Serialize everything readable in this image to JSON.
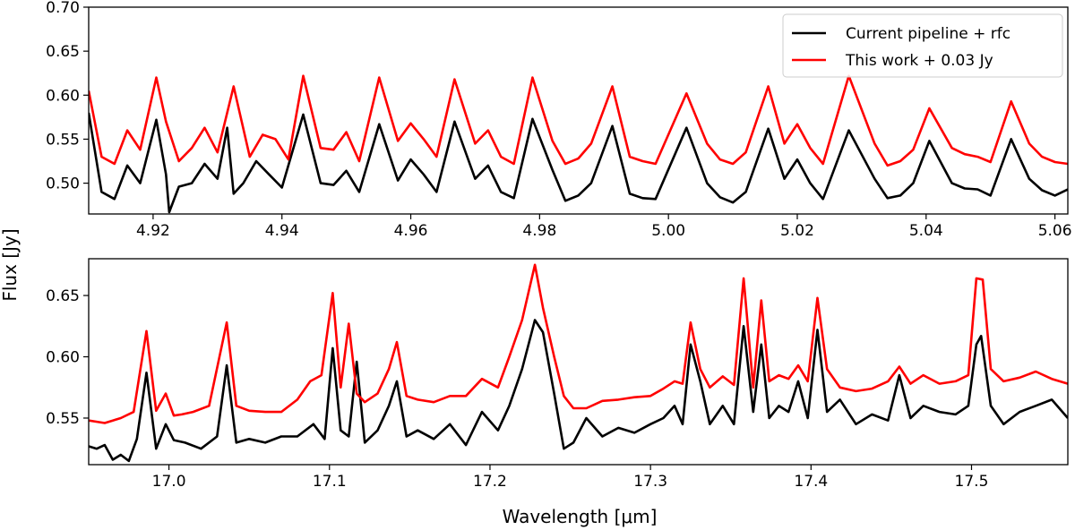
{
  "figure": {
    "ylabel": "Flux [Jy]",
    "xlabel": "Wavelength [μm]"
  },
  "legend": {
    "entries": [
      {
        "label": "Current pipeline + rfc",
        "color": "#000000"
      },
      {
        "label": "This work + 0.03 Jy",
        "color": "#ff0000"
      }
    ],
    "placement": "top-right"
  },
  "chart_data": [
    {
      "type": "line",
      "xlim": [
        4.91,
        5.062
      ],
      "ylim": [
        0.465,
        0.7
      ],
      "xticks": [
        "4.92",
        "4.94",
        "4.96",
        "4.98",
        "5.00",
        "5.02",
        "5.04",
        "5.06"
      ],
      "yticks": [
        "0.50",
        "0.55",
        "0.60",
        "0.65",
        "0.70"
      ],
      "series": [
        {
          "name": "Current pipeline + rfc",
          "color": "#000000",
          "x": [
            4.91,
            4.912,
            4.914,
            4.916,
            4.918,
            4.9205,
            4.922,
            4.9225,
            4.924,
            4.926,
            4.928,
            4.93,
            4.9315,
            4.9325,
            4.934,
            4.936,
            4.938,
            4.94,
            4.9433,
            4.946,
            4.948,
            4.95,
            4.952,
            4.9551,
            4.958,
            4.96,
            4.962,
            4.964,
            4.9668,
            4.97,
            4.972,
            4.974,
            4.976,
            4.9789,
            4.982,
            4.984,
            4.986,
            4.988,
            4.9913,
            4.994,
            4.996,
            4.998,
            5.0028,
            5.006,
            5.008,
            5.01,
            5.012,
            5.0155,
            5.018,
            5.02,
            5.022,
            5.024,
            5.028,
            5.032,
            5.034,
            5.036,
            5.038,
            5.0405,
            5.044,
            5.046,
            5.048,
            5.05,
            5.0532,
            5.056,
            5.058,
            5.06,
            5.062
          ],
          "y": [
            0.58,
            0.49,
            0.482,
            0.52,
            0.5,
            0.572,
            0.51,
            0.467,
            0.496,
            0.5,
            0.522,
            0.505,
            0.563,
            0.488,
            0.5,
            0.525,
            0.51,
            0.495,
            0.578,
            0.5,
            0.498,
            0.514,
            0.49,
            0.567,
            0.503,
            0.527,
            0.51,
            0.49,
            0.57,
            0.505,
            0.52,
            0.49,
            0.483,
            0.573,
            0.515,
            0.48,
            0.486,
            0.5,
            0.565,
            0.488,
            0.483,
            0.482,
            0.563,
            0.5,
            0.484,
            0.478,
            0.49,
            0.562,
            0.505,
            0.527,
            0.5,
            0.482,
            0.56,
            0.505,
            0.483,
            0.486,
            0.5,
            0.548,
            0.5,
            0.494,
            0.493,
            0.486,
            0.55,
            0.505,
            0.492,
            0.486,
            0.493
          ]
        },
        {
          "name": "This work + 0.03 Jy",
          "color": "#ff0000",
          "x": [
            4.91,
            4.912,
            4.914,
            4.916,
            4.918,
            4.9205,
            4.922,
            4.924,
            4.926,
            4.928,
            4.93,
            4.9325,
            4.935,
            4.937,
            4.939,
            4.941,
            4.9433,
            4.946,
            4.948,
            4.95,
            4.952,
            4.9551,
            4.958,
            4.96,
            4.962,
            4.964,
            4.9668,
            4.97,
            4.972,
            4.974,
            4.976,
            4.9789,
            4.982,
            4.984,
            4.986,
            4.988,
            4.9913,
            4.994,
            4.996,
            4.998,
            5.0028,
            5.006,
            5.008,
            5.01,
            5.012,
            5.0155,
            5.018,
            5.02,
            5.022,
            5.024,
            5.028,
            5.032,
            5.034,
            5.036,
            5.038,
            5.0405,
            5.044,
            5.046,
            5.048,
            5.05,
            5.0532,
            5.056,
            5.058,
            5.06,
            5.062
          ],
          "y": [
            0.605,
            0.53,
            0.522,
            0.56,
            0.538,
            0.62,
            0.57,
            0.525,
            0.54,
            0.563,
            0.535,
            0.61,
            0.53,
            0.555,
            0.55,
            0.527,
            0.622,
            0.54,
            0.538,
            0.558,
            0.525,
            0.62,
            0.548,
            0.568,
            0.55,
            0.53,
            0.618,
            0.545,
            0.56,
            0.53,
            0.522,
            0.62,
            0.548,
            0.522,
            0.528,
            0.545,
            0.61,
            0.53,
            0.525,
            0.522,
            0.602,
            0.545,
            0.527,
            0.522,
            0.535,
            0.61,
            0.545,
            0.567,
            0.54,
            0.522,
            0.622,
            0.545,
            0.52,
            0.525,
            0.538,
            0.585,
            0.54,
            0.533,
            0.53,
            0.524,
            0.593,
            0.545,
            0.53,
            0.524,
            0.522
          ]
        }
      ]
    },
    {
      "type": "line",
      "xlim": [
        16.95,
        17.56
      ],
      "ylim": [
        0.512,
        0.68
      ],
      "xticks": [
        "17.0",
        "17.1",
        "17.2",
        "17.3",
        "17.4",
        "17.5"
      ],
      "yticks": [
        "0.55",
        "0.60",
        "0.65"
      ],
      "series": [
        {
          "name": "Current pipeline + rfc",
          "color": "#000000",
          "x": [
            16.95,
            16.955,
            16.96,
            16.965,
            16.97,
            16.975,
            16.98,
            16.986,
            16.992,
            16.998,
            17.003,
            17.01,
            17.02,
            17.03,
            17.036,
            17.042,
            17.05,
            17.06,
            17.07,
            17.08,
            17.09,
            17.097,
            17.102,
            17.107,
            17.112,
            17.117,
            17.122,
            17.13,
            17.137,
            17.142,
            17.148,
            17.155,
            17.165,
            17.175,
            17.185,
            17.195,
            17.205,
            17.212,
            17.22,
            17.228,
            17.233,
            17.24,
            17.246,
            17.252,
            17.26,
            17.27,
            17.28,
            17.29,
            17.3,
            17.308,
            17.315,
            17.32,
            17.325,
            17.331,
            17.337,
            17.345,
            17.352,
            17.358,
            17.364,
            17.369,
            17.374,
            17.38,
            17.386,
            17.392,
            17.398,
            17.404,
            17.41,
            17.418,
            17.428,
            17.438,
            17.448,
            17.455,
            17.462,
            17.47,
            17.48,
            17.49,
            17.498,
            17.503,
            17.506,
            17.512,
            17.52,
            17.53,
            17.54,
            17.55,
            17.56
          ],
          "y": [
            0.527,
            0.525,
            0.528,
            0.516,
            0.52,
            0.515,
            0.533,
            0.587,
            0.525,
            0.545,
            0.532,
            0.53,
            0.525,
            0.535,
            0.593,
            0.53,
            0.533,
            0.53,
            0.535,
            0.535,
            0.545,
            0.533,
            0.607,
            0.54,
            0.535,
            0.596,
            0.53,
            0.54,
            0.56,
            0.58,
            0.535,
            0.54,
            0.533,
            0.545,
            0.528,
            0.555,
            0.54,
            0.56,
            0.59,
            0.63,
            0.62,
            0.57,
            0.525,
            0.53,
            0.55,
            0.535,
            0.542,
            0.538,
            0.545,
            0.55,
            0.56,
            0.545,
            0.61,
            0.58,
            0.545,
            0.56,
            0.545,
            0.625,
            0.555,
            0.61,
            0.55,
            0.56,
            0.555,
            0.58,
            0.55,
            0.622,
            0.555,
            0.565,
            0.545,
            0.553,
            0.548,
            0.585,
            0.55,
            0.56,
            0.555,
            0.553,
            0.56,
            0.61,
            0.617,
            0.56,
            0.545,
            0.555,
            0.56,
            0.565,
            0.55
          ]
        },
        {
          "name": "This work + 0.03 Jy",
          "color": "#ff0000",
          "x": [
            16.95,
            16.96,
            16.97,
            16.978,
            16.986,
            16.992,
            16.998,
            17.003,
            17.008,
            17.015,
            17.025,
            17.036,
            17.042,
            17.05,
            17.06,
            17.07,
            17.08,
            17.088,
            17.095,
            17.102,
            17.107,
            17.112,
            17.117,
            17.122,
            17.13,
            17.137,
            17.142,
            17.148,
            17.155,
            17.165,
            17.175,
            17.185,
            17.195,
            17.205,
            17.212,
            17.22,
            17.228,
            17.233,
            17.24,
            17.246,
            17.252,
            17.26,
            17.27,
            17.28,
            17.29,
            17.3,
            17.308,
            17.315,
            17.32,
            17.325,
            17.331,
            17.337,
            17.345,
            17.352,
            17.358,
            17.364,
            17.369,
            17.374,
            17.38,
            17.386,
            17.392,
            17.398,
            17.404,
            17.41,
            17.418,
            17.428,
            17.438,
            17.448,
            17.455,
            17.462,
            17.47,
            17.48,
            17.49,
            17.498,
            17.503,
            17.507,
            17.512,
            17.52,
            17.53,
            17.54,
            17.55,
            17.56
          ],
          "y": [
            0.548,
            0.546,
            0.55,
            0.555,
            0.621,
            0.556,
            0.57,
            0.552,
            0.553,
            0.555,
            0.56,
            0.628,
            0.56,
            0.556,
            0.555,
            0.555,
            0.565,
            0.58,
            0.585,
            0.652,
            0.575,
            0.627,
            0.57,
            0.563,
            0.57,
            0.59,
            0.612,
            0.568,
            0.565,
            0.563,
            0.568,
            0.568,
            0.582,
            0.575,
            0.6,
            0.63,
            0.675,
            0.64,
            0.6,
            0.568,
            0.558,
            0.558,
            0.564,
            0.565,
            0.567,
            0.568,
            0.574,
            0.58,
            0.578,
            0.628,
            0.59,
            0.575,
            0.584,
            0.577,
            0.664,
            0.575,
            0.646,
            0.58,
            0.585,
            0.582,
            0.593,
            0.58,
            0.648,
            0.59,
            0.575,
            0.572,
            0.574,
            0.58,
            0.592,
            0.578,
            0.585,
            0.578,
            0.58,
            0.585,
            0.664,
            0.663,
            0.59,
            0.58,
            0.583,
            0.588,
            0.582,
            0.578
          ]
        }
      ]
    }
  ]
}
